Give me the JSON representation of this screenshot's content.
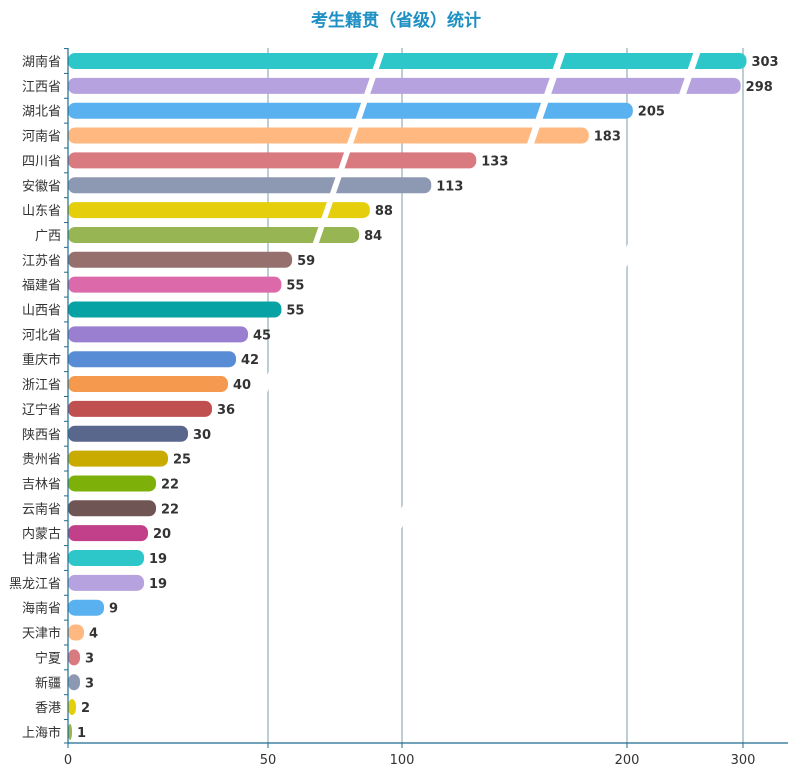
{
  "chart_data": {
    "type": "bar",
    "orientation": "horizontal",
    "title": "考生籍贯（省级）统计",
    "categories": [
      "湖南省",
      "江西省",
      "湖北省",
      "河南省",
      "四川省",
      "安徽省",
      "山东省",
      "广西",
      "江苏省",
      "福建省",
      "山西省",
      "河北省",
      "重庆市",
      "浙江省",
      "辽宁省",
      "陕西省",
      "贵州省",
      "吉林省",
      "云南省",
      "内蒙古",
      "甘肃省",
      "黑龙江省",
      "海南省",
      "天津市",
      "宁夏",
      "新疆",
      "香港",
      "上海市"
    ],
    "values": [
      303,
      298,
      205,
      183,
      133,
      113,
      88,
      84,
      59,
      55,
      55,
      45,
      42,
      40,
      36,
      30,
      25,
      22,
      22,
      20,
      19,
      19,
      9,
      4,
      3,
      3,
      2,
      1
    ],
    "x_ticks": [
      "0",
      "50",
      "100",
      "200",
      "300"
    ],
    "x_tick_values": [
      0,
      50,
      100,
      200,
      300
    ],
    "axis_break": "between 100 and 200",
    "grid": "vertical lines",
    "colors": [
      "#2ec7c9",
      "#b6a2de",
      "#5ab1ef",
      "#ffb980",
      "#d87a80",
      "#8d98b3",
      "#e5cf0d",
      "#97b552",
      "#95706d",
      "#dc69aa",
      "#07a2a4",
      "#9a7fd1",
      "#588dd5",
      "#f5994e",
      "#c05050",
      "#59678c",
      "#c9ab00",
      "#7eb00a",
      "#6f5553",
      "#c14089",
      "#2ec7c9",
      "#b6a2de",
      "#5ab1ef",
      "#ffb980",
      "#d87a80",
      "#8d98b3",
      "#e5cf0d",
      "#97b552"
    ]
  }
}
